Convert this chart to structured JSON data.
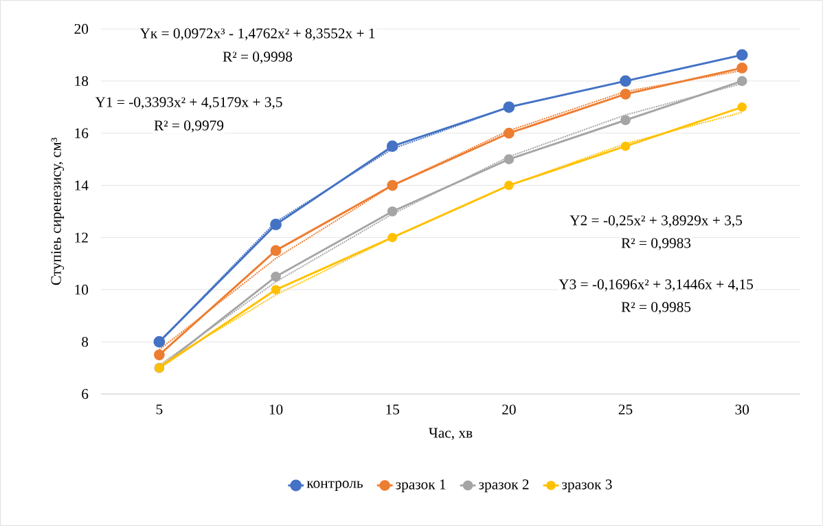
{
  "chart_data": {
    "type": "line",
    "xlabel": "Час, хв",
    "ylabel": "Ступіеь сиренезису, см³",
    "categories": [
      "5",
      "10",
      "15",
      "20",
      "25",
      "30"
    ],
    "series": [
      {
        "name": "контроль",
        "color": "#4472c4",
        "values": [
          8,
          12.5,
          15.5,
          17,
          18,
          19
        ]
      },
      {
        "name": "зразок 1",
        "color": "#ed7d31",
        "values": [
          7.5,
          11.5,
          14,
          16,
          17.5,
          18.5
        ]
      },
      {
        "name": "зразок 2",
        "color": "#a5a5a5",
        "values": [
          7,
          10.5,
          13,
          15,
          16.5,
          18
        ]
      },
      {
        "name": "зразок 3",
        "color": "#ffc000",
        "values": [
          7,
          10,
          12,
          14,
          15.5,
          17
        ]
      },
      {
        "type": "line",
        "line_style": "dotted",
        "marker": "none",
        "color": "#4472c4",
        "values": [
          8.0,
          12.6,
          15.4,
          17.0,
          18.0,
          19.0
        ]
      },
      {
        "type": "line",
        "line_style": "dotted",
        "marker": "none",
        "color": "#ed7d31",
        "values": [
          7.7,
          11.2,
          14.0,
          16.1,
          17.6,
          18.4
        ]
      },
      {
        "type": "line",
        "line_style": "dotted",
        "marker": "none",
        "color": "#a5a5a5",
        "values": [
          7.1,
          10.3,
          12.9,
          15.1,
          16.7,
          17.9
        ]
      },
      {
        "type": "line",
        "line_style": "dotted",
        "marker": "none",
        "color": "#ffc000",
        "values": [
          7.1,
          9.8,
          12.0,
          14.0,
          15.6,
          16.8
        ]
      }
    ],
    "annotations": [
      "Yк = 0,0972x³ - 1,4762x² + 8,3552x + 1",
      "R² = 0,9998",
      "Y1 = -0,3393x² + 4,5179x + 3,5",
      "R² = 0,9979",
      "Y2 = -0,25x² + 3,8929x + 3,5",
      "R² = 0,9983",
      "Y3 = -0,1696x² + 3,1446x + 4,15",
      "R² = 0,9985"
    ],
    "ylim": [
      6,
      20
    ],
    "yticks": [
      6,
      8,
      10,
      12,
      14,
      16,
      18,
      20
    ],
    "grid": "y",
    "legend": "bottom",
    "marker": "circle",
    "line_style": "solid"
  }
}
